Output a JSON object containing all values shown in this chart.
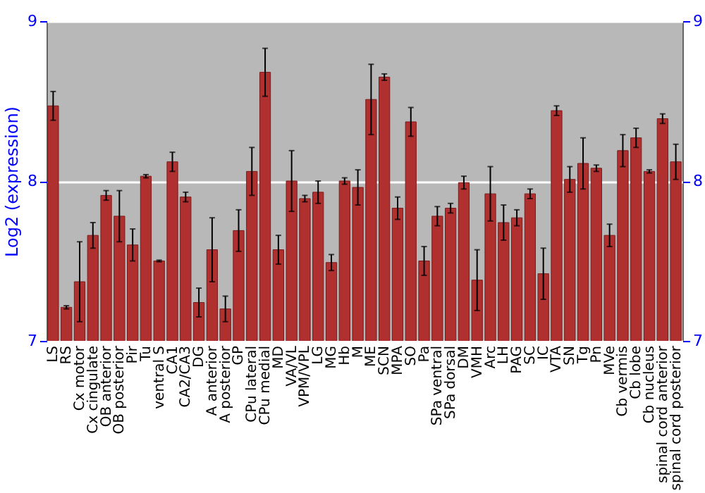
{
  "chart_data": {
    "type": "bar",
    "ylabel": "Log2 (expression)",
    "categories": [
      "LS",
      "RS",
      "Cx motor",
      "Cx cingulate",
      "OB anterior",
      "OB posterior",
      "Pir",
      "Tu",
      "ventral S",
      "CA1",
      "CA2/CA3",
      "DG",
      "A anterior",
      "A posterior",
      "GP",
      "CPu lateral",
      "CPu medial",
      "MD",
      "VA/VL",
      "VPM/VPL",
      "LG",
      "MG",
      "Hb",
      "M",
      "ME",
      "SCN",
      "MPA",
      "SO",
      "Pa",
      "SPa ventral",
      "SPa dorsal",
      "DM",
      "VMH",
      "Arc",
      "LH",
      "PAG",
      "SC",
      "IC",
      "VTA",
      "SN",
      "Tg",
      "Pn",
      "MVe",
      "Cb vermis",
      "Cb lobe",
      "Cb nucleus",
      "spinal cord anterior",
      "spinal cord posterior"
    ],
    "series": [
      {
        "color": "#b03030",
        "values": [
          8.47,
          7.21,
          7.37,
          7.66,
          7.91,
          7.78,
          7.6,
          8.03,
          7.5,
          8.12,
          7.9,
          7.24,
          7.57,
          7.2,
          7.69,
          8.06,
          8.68,
          7.57,
          8.0,
          7.89,
          7.93,
          7.49,
          8.0,
          7.96,
          8.51,
          8.65,
          7.83,
          8.37,
          7.5,
          7.78,
          7.83,
          7.99,
          7.38,
          7.92,
          7.74,
          7.77,
          7.92,
          7.42,
          8.44,
          8.01,
          8.11,
          8.08,
          7.66,
          8.19,
          8.27,
          8.06,
          8.39,
          8.12
        ],
        "errors": [
          0.09,
          0.01,
          0.25,
          0.08,
          0.03,
          0.16,
          0.1,
          0.01,
          0.005,
          0.06,
          0.03,
          0.09,
          0.2,
          0.08,
          0.13,
          0.15,
          0.15,
          0.09,
          0.19,
          0.02,
          0.07,
          0.05,
          0.02,
          0.11,
          0.22,
          0.02,
          0.07,
          0.09,
          0.09,
          0.06,
          0.03,
          0.04,
          0.19,
          0.17,
          0.11,
          0.05,
          0.03,
          0.16,
          0.03,
          0.08,
          0.16,
          0.02,
          0.07,
          0.1,
          0.06,
          0.01,
          0.03,
          0.11
        ]
      }
    ],
    "ylim": [
      7,
      9
    ],
    "yticks": [
      7,
      8,
      9
    ],
    "y2lim": [
      7,
      9
    ],
    "y2ticks": [
      7,
      8,
      9
    ],
    "grid": "y"
  }
}
